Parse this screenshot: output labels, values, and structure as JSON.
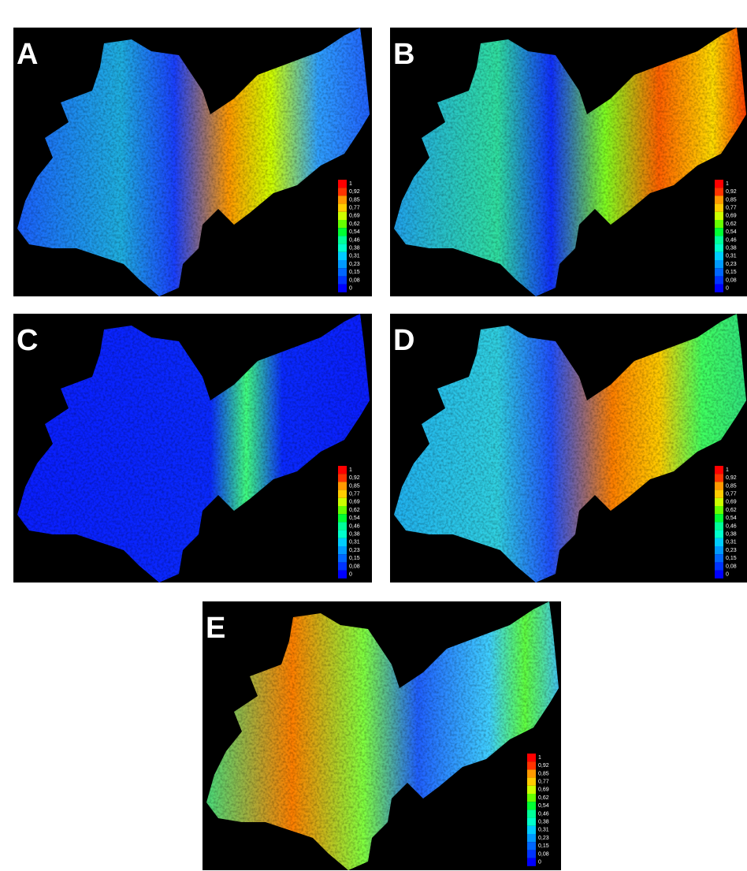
{
  "panels": [
    {
      "label": "A"
    },
    {
      "label": "B"
    },
    {
      "label": "C"
    },
    {
      "label": "D"
    },
    {
      "label": "E"
    }
  ],
  "legend": {
    "labels": [
      "1",
      "0,92",
      "0,85",
      "0,77",
      "0,69",
      "0,62",
      "0,54",
      "0,46",
      "0,38",
      "0,31",
      "0,23",
      "0,15",
      "0,08",
      "0"
    ]
  }
}
